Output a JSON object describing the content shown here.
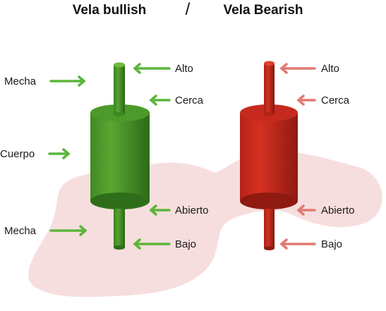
{
  "header": {
    "bullish_title": "Vela bullish",
    "separator": "/",
    "bearish_title": "Vela Bearish"
  },
  "bullish": {
    "left_labels": {
      "wick_top": "Mecha",
      "body": "Cuerpo",
      "wick_bottom": "Mecha"
    },
    "right_labels": {
      "high": "Alto",
      "close": "Cerca",
      "open": "Abierto",
      "low": "Bajo"
    }
  },
  "bearish": {
    "right_labels": {
      "high": "Alto",
      "close": "Cerca",
      "open": "Abierto",
      "low": "Bajo"
    }
  },
  "colors": {
    "bullish": "#4c9a2a",
    "bullish_dark": "#2f6e18",
    "bullish_light": "#74c043",
    "bullish_arrow": "#5bb53a",
    "bearish": "#c62a1e",
    "bearish_dark": "#8f1a12",
    "bearish_light": "#e23a2c",
    "bearish_arrow": "#e07a72",
    "blob": "#f7dede"
  }
}
